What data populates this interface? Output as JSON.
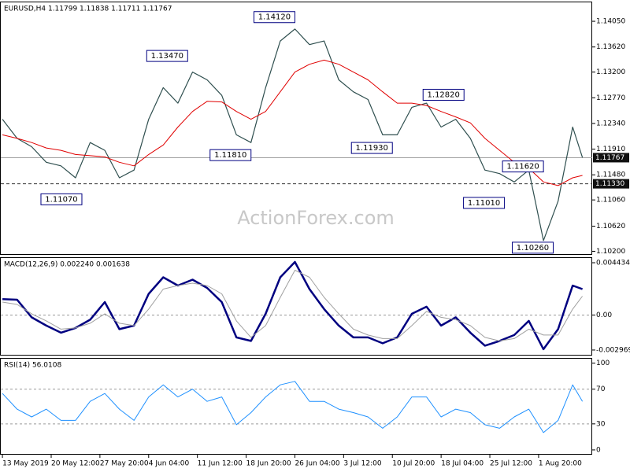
{
  "chart_data": [
    {
      "type": "line",
      "title": "EURUSD,H4  1.11799 1.11838 1.11711 1.11767",
      "watermark": "ActionForex.com",
      "x": [
        0,
        3,
        6,
        9,
        12,
        15,
        18,
        21,
        24,
        27,
        30,
        33,
        36,
        39,
        42,
        45,
        48,
        51,
        54,
        57,
        60,
        63,
        66,
        69,
        72,
        75,
        78,
        81,
        84,
        87,
        90,
        93,
        96,
        99,
        102,
        105,
        108,
        111,
        114,
        117,
        119
      ],
      "xlim": [
        -0.5,
        121
      ],
      "ylim": [
        1.1014,
        1.1438
      ],
      "yticks": [
        {
          "value": 1.1405,
          "label": "1.14050"
        },
        {
          "value": 1.1362,
          "label": "1.13620"
        },
        {
          "value": 1.132,
          "label": "1.13200"
        },
        {
          "value": 1.1277,
          "label": "1.12770"
        },
        {
          "value": 1.1234,
          "label": "1.12340"
        },
        {
          "value": 1.1191,
          "label": "1.11910"
        },
        {
          "value": 1.1148,
          "label": "1.11480"
        },
        {
          "value": 1.1106,
          "label": "1.11060"
        },
        {
          "value": 1.1062,
          "label": "1.10620"
        },
        {
          "value": 1.102,
          "label": "1.10200"
        }
      ],
      "series": [
        {
          "color": "#2f4f4f",
          "line_width": 1.2,
          "values": [
            1.1241,
            1.1209,
            1.1195,
            1.1169,
            1.1163,
            1.1143,
            1.1202,
            1.1189,
            1.1143,
            1.1156,
            1.1241,
            1.1294,
            1.1268,
            1.132,
            1.1307,
            1.1281,
            1.1215,
            1.1202,
            1.1294,
            1.1372,
            1.1392,
            1.1366,
            1.1372,
            1.1307,
            1.1287,
            1.1274,
            1.1215,
            1.1215,
            1.1261,
            1.1268,
            1.1228,
            1.1241,
            1.1209,
            1.1156,
            1.115,
            1.1136,
            1.1156,
            1.1038,
            1.1104,
            1.1228,
            1.1177
          ]
        },
        {
          "color": "#e00000",
          "line_width": 1,
          "values": [
            1.1215,
            1.1209,
            1.1202,
            1.1193,
            1.1189,
            1.1182,
            1.118,
            1.1178,
            1.1169,
            1.1163,
            1.1182,
            1.1198,
            1.1228,
            1.1254,
            1.1271,
            1.127,
            1.1254,
            1.1241,
            1.1254,
            1.1287,
            1.132,
            1.1333,
            1.134,
            1.1333,
            1.132,
            1.1307,
            1.1287,
            1.1268,
            1.1268,
            1.1264,
            1.1254,
            1.1245,
            1.1235,
            1.1209,
            1.1189,
            1.1169,
            1.1159,
            1.1136,
            1.113,
            1.1143,
            1.1147
          ]
        }
      ],
      "hlines": [
        {
          "value": 1.11767,
          "label": "1.11767",
          "style": "solid"
        },
        {
          "value": 1.1133,
          "label": "1.11330",
          "style": "dashed"
        }
      ],
      "annotations": [
        {
          "x": 60,
          "value": 1.1412,
          "label": "1.14120"
        },
        {
          "x": 38,
          "value": 1.1347,
          "label": "1.13470"
        },
        {
          "x": 16.3,
          "value": 1.1107,
          "label": "1.11070"
        },
        {
          "x": 51,
          "value": 1.1181,
          "label": "1.11810"
        },
        {
          "x": 80,
          "value": 1.1193,
          "label": "1.11930"
        },
        {
          "x": 94.7,
          "value": 1.1282,
          "label": "1.12820"
        },
        {
          "x": 111,
          "value": 1.1162,
          "label": "1.11620"
        },
        {
          "x": 103,
          "value": 1.1101,
          "label": "1.11010"
        },
        {
          "x": 113,
          "value": 1.1026,
          "label": "1.10260"
        }
      ]
    },
    {
      "type": "line",
      "title": "MACD(12,26,9) 0.002240 0.001638",
      "x": [
        0,
        3,
        6,
        9,
        12,
        15,
        18,
        21,
        24,
        27,
        30,
        33,
        36,
        39,
        42,
        45,
        48,
        51,
        54,
        57,
        60,
        63,
        66,
        69,
        72,
        75,
        78,
        81,
        84,
        87,
        90,
        93,
        96,
        99,
        102,
        105,
        108,
        111,
        114,
        117,
        119
      ],
      "xlim": [
        -0.5,
        121
      ],
      "ylim": [
        -0.00344,
        0.0049
      ],
      "yticks": [
        0.004434,
        {
          "value": 0,
          "label": "0.00"
        },
        -0.002969
      ],
      "level_lines": true,
      "series": [
        {
          "color": "#000080",
          "line_width": 2.5,
          "values": [
            0.00135,
            0.0013,
            -0.0002,
            -0.0009,
            -0.0015,
            -0.0011,
            -0.0004,
            0.0011,
            -0.0012,
            -0.0009,
            0.0018,
            0.0032,
            0.0025,
            0.003,
            0.0023,
            0.0011,
            -0.0019,
            -0.0022,
            0.0001,
            0.0032,
            0.0045,
            0.0022,
            0.0005,
            -0.0009,
            -0.0019,
            -0.0019,
            -0.0024,
            -0.0019,
            0.0001,
            0.0007,
            -0.0009,
            -0.0002,
            -0.0015,
            -0.0026,
            -0.0022,
            -0.0017,
            -0.0005,
            -0.0029,
            -0.0012,
            0.0025,
            0.0022
          ]
        },
        {
          "color": "#a0a0a0",
          "line_width": 1,
          "values": [
            0.0011,
            0.0009,
            0.0001,
            -0.0005,
            -0.0012,
            -0.0011,
            -0.0007,
            0.0001,
            -0.0007,
            -0.0009,
            0.0005,
            0.0022,
            0.0025,
            0.0027,
            0.0025,
            0.0018,
            -0.0005,
            -0.0019,
            -0.0009,
            0.0015,
            0.0038,
            0.0032,
            0.0015,
            0.0001,
            -0.0012,
            -0.0017,
            -0.002,
            -0.002,
            -0.0009,
            0.0003,
            -0.0002,
            -0.0004,
            -0.0009,
            -0.0019,
            -0.0022,
            -0.002,
            -0.0012,
            -0.0017,
            -0.0017,
            0.0005,
            0.0016
          ]
        }
      ]
    },
    {
      "type": "line",
      "title": "RSI(14) 56.0108",
      "x": [
        0,
        3,
        6,
        9,
        12,
        15,
        18,
        21,
        24,
        27,
        30,
        33,
        36,
        39,
        42,
        45,
        48,
        51,
        54,
        57,
        60,
        63,
        66,
        69,
        72,
        75,
        78,
        81,
        84,
        87,
        90,
        93,
        96,
        99,
        102,
        105,
        108,
        111,
        114,
        117,
        119
      ],
      "xlim": [
        -0.5,
        121
      ],
      "ylim": [
        -5.5,
        106
      ],
      "yticks": [
        100,
        70,
        30,
        0
      ],
      "level_lines": true,
      "xticks": [
        {
          "value": 0,
          "label": "13 May 2019"
        },
        {
          "value": 10,
          "label": "20 May 12:00"
        },
        {
          "value": 20,
          "label": "27 May 20:00"
        },
        {
          "value": 30,
          "label": "4 Jun 04:00"
        },
        {
          "value": 40,
          "label": "11 Jun 12:00"
        },
        {
          "value": 50,
          "label": "18 Jun 20:00"
        },
        {
          "value": 60,
          "label": "26 Jun 04:00"
        },
        {
          "value": 70,
          "label": "3 Jul 12:00"
        },
        {
          "value": 80,
          "label": "10 Jul 20:00"
        },
        {
          "value": 90,
          "label": "18 Jul 04:00"
        },
        {
          "value": 100,
          "label": "25 Jul 12:00"
        },
        {
          "value": 110,
          "label": "1 Aug 20:00"
        }
      ],
      "series": [
        {
          "color": "#1e90ff",
          "line_width": 1,
          "values": [
            65,
            47,
            38,
            47,
            34,
            34,
            56,
            65,
            47,
            34,
            61,
            75,
            61,
            70,
            56,
            61,
            29,
            43,
            61,
            75,
            79,
            56,
            56,
            47,
            43,
            38,
            25,
            38,
            61,
            61,
            38,
            47,
            43,
            29,
            25,
            38,
            47,
            20,
            34,
            75,
            56
          ]
        }
      ]
    }
  ]
}
